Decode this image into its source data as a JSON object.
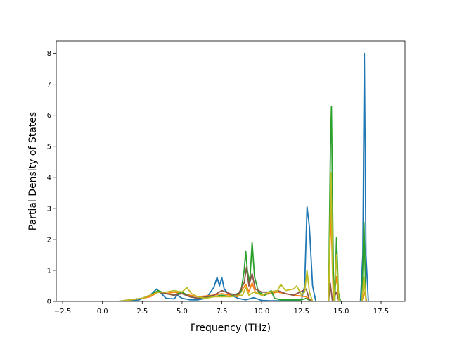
{
  "chart_data": {
    "type": "line",
    "title": "",
    "xlabel": "Frequency (THz)",
    "ylabel": "Partial Density of States",
    "xlim": [
      -2.9,
      19.0
    ],
    "ylim": [
      0,
      8.4
    ],
    "xticks": [
      -2.5,
      0.0,
      2.5,
      5.0,
      7.5,
      10.0,
      12.5,
      15.0,
      17.5
    ],
    "xtick_labels": [
      "−2.5",
      "0.0",
      "2.5",
      "5.0",
      "7.5",
      "10.0",
      "12.5",
      "15.0",
      "17.5"
    ],
    "yticks": [
      0,
      1,
      2,
      3,
      4,
      5,
      6,
      7,
      8
    ],
    "ytick_labels": [
      "0",
      "1",
      "2",
      "3",
      "4",
      "5",
      "6",
      "7",
      "8"
    ],
    "grid": false,
    "legend": false,
    "series": [
      {
        "color": "#1f77b4",
        "points": [
          [
            -1.6,
            0
          ],
          [
            1.0,
            0
          ],
          [
            2.3,
            0.05
          ],
          [
            3.0,
            0.2
          ],
          [
            3.4,
            0.4
          ],
          [
            3.7,
            0.25
          ],
          [
            4.0,
            0.1
          ],
          [
            4.5,
            0.08
          ],
          [
            4.7,
            0.2
          ],
          [
            5.0,
            0.1
          ],
          [
            5.5,
            0.05
          ],
          [
            6.0,
            0.05
          ],
          [
            6.5,
            0.1
          ],
          [
            7.0,
            0.45
          ],
          [
            7.2,
            0.78
          ],
          [
            7.35,
            0.5
          ],
          [
            7.5,
            0.77
          ],
          [
            7.65,
            0.4
          ],
          [
            7.9,
            0.25
          ],
          [
            8.5,
            0.1
          ],
          [
            9.0,
            0.05
          ],
          [
            9.5,
            0.12
          ],
          [
            10.0,
            0.03
          ],
          [
            10.5,
            0.02
          ],
          [
            11.5,
            0.02
          ],
          [
            12.5,
            0.05
          ],
          [
            12.7,
            0.5
          ],
          [
            12.85,
            3.05
          ],
          [
            13.0,
            2.4
          ],
          [
            13.2,
            0.5
          ],
          [
            13.4,
            0
          ],
          [
            16.2,
            0
          ],
          [
            16.35,
            1.5
          ],
          [
            16.45,
            8.0
          ],
          [
            16.55,
            1.5
          ],
          [
            16.7,
            0
          ],
          [
            18.0,
            0
          ]
        ]
      },
      {
        "color": "#ff7f0e",
        "points": [
          [
            -1.6,
            0
          ],
          [
            1.0,
            0
          ],
          [
            2.5,
            0.1
          ],
          [
            3.0,
            0.15
          ],
          [
            3.5,
            0.3
          ],
          [
            4.0,
            0.25
          ],
          [
            4.5,
            0.3
          ],
          [
            5.0,
            0.25
          ],
          [
            5.5,
            0.2
          ],
          [
            6.0,
            0.15
          ],
          [
            7.0,
            0.2
          ],
          [
            7.5,
            0.25
          ],
          [
            8.0,
            0.2
          ],
          [
            8.5,
            0.15
          ],
          [
            9.0,
            0.55
          ],
          [
            9.2,
            0.3
          ],
          [
            9.4,
            0.6
          ],
          [
            9.6,
            0.3
          ],
          [
            10.0,
            0.2
          ],
          [
            11.0,
            0.3
          ],
          [
            12.0,
            0.2
          ],
          [
            12.8,
            0.15
          ],
          [
            13.2,
            0
          ],
          [
            14.2,
            0
          ],
          [
            14.35,
            3.0
          ],
          [
            14.5,
            0
          ],
          [
            14.7,
            0.8
          ],
          [
            14.85,
            0
          ],
          [
            16.3,
            0
          ],
          [
            16.45,
            0.3
          ],
          [
            16.6,
            0
          ],
          [
            18.0,
            0
          ]
        ]
      },
      {
        "color": "#2ca02c",
        "points": [
          [
            -1.6,
            0
          ],
          [
            1.0,
            0
          ],
          [
            2.5,
            0.1
          ],
          [
            3.0,
            0.2
          ],
          [
            3.5,
            0.35
          ],
          [
            4.0,
            0.25
          ],
          [
            4.5,
            0.2
          ],
          [
            5.0,
            0.3
          ],
          [
            5.5,
            0.15
          ],
          [
            6.0,
            0.1
          ],
          [
            7.0,
            0.15
          ],
          [
            7.5,
            0.2
          ],
          [
            8.0,
            0.15
          ],
          [
            8.7,
            0.3
          ],
          [
            8.9,
            1.0
          ],
          [
            9.0,
            1.62
          ],
          [
            9.1,
            1.0
          ],
          [
            9.25,
            0.6
          ],
          [
            9.4,
            1.9
          ],
          [
            9.55,
            0.8
          ],
          [
            9.8,
            0.3
          ],
          [
            10.2,
            0.2
          ],
          [
            10.6,
            0.35
          ],
          [
            10.8,
            0.1
          ],
          [
            11.2,
            0.05
          ],
          [
            12.5,
            0.05
          ],
          [
            12.8,
            0.1
          ],
          [
            13.1,
            0
          ],
          [
            14.2,
            0
          ],
          [
            14.32,
            5.0
          ],
          [
            14.38,
            6.28
          ],
          [
            14.5,
            1.0
          ],
          [
            14.6,
            0
          ],
          [
            14.7,
            2.05
          ],
          [
            14.82,
            0.3
          ],
          [
            14.95,
            0
          ],
          [
            16.3,
            0
          ],
          [
            16.42,
            2.55
          ],
          [
            16.55,
            0
          ],
          [
            18.0,
            0
          ]
        ]
      },
      {
        "color": "#8c564b",
        "points": [
          [
            -1.6,
            0
          ],
          [
            1.0,
            0
          ],
          [
            2.5,
            0.1
          ],
          [
            3.0,
            0.2
          ],
          [
            3.5,
            0.3
          ],
          [
            4.0,
            0.25
          ],
          [
            4.5,
            0.2
          ],
          [
            5.0,
            0.25
          ],
          [
            5.5,
            0.15
          ],
          [
            6.0,
            0.1
          ],
          [
            7.0,
            0.2
          ],
          [
            7.5,
            0.35
          ],
          [
            8.0,
            0.25
          ],
          [
            8.5,
            0.2
          ],
          [
            8.9,
            0.6
          ],
          [
            9.05,
            1.1
          ],
          [
            9.2,
            0.5
          ],
          [
            9.4,
            0.9
          ],
          [
            9.6,
            0.4
          ],
          [
            10.0,
            0.3
          ],
          [
            10.5,
            0.3
          ],
          [
            11.0,
            0.35
          ],
          [
            11.5,
            0.25
          ],
          [
            12.0,
            0.2
          ],
          [
            12.8,
            0.4
          ],
          [
            13.0,
            0.05
          ],
          [
            13.2,
            0
          ],
          [
            14.2,
            0
          ],
          [
            14.3,
            0.6
          ],
          [
            14.45,
            0
          ],
          [
            14.7,
            0.3
          ],
          [
            14.85,
            0
          ],
          [
            18.0,
            0
          ]
        ]
      },
      {
        "color": "#bcbd22",
        "points": [
          [
            -1.6,
            0
          ],
          [
            1.0,
            0
          ],
          [
            2.5,
            0.1
          ],
          [
            3.0,
            0.2
          ],
          [
            3.5,
            0.3
          ],
          [
            4.0,
            0.3
          ],
          [
            4.5,
            0.35
          ],
          [
            5.0,
            0.3
          ],
          [
            5.3,
            0.45
          ],
          [
            5.6,
            0.25
          ],
          [
            6.0,
            0.15
          ],
          [
            6.5,
            0.1
          ],
          [
            7.0,
            0.15
          ],
          [
            8.0,
            0.15
          ],
          [
            8.8,
            0.2
          ],
          [
            9.0,
            0.45
          ],
          [
            9.2,
            0.2
          ],
          [
            9.5,
            0.3
          ],
          [
            10.0,
            0.2
          ],
          [
            10.5,
            0.3
          ],
          [
            11.0,
            0.35
          ],
          [
            11.2,
            0.55
          ],
          [
            11.5,
            0.35
          ],
          [
            12.0,
            0.4
          ],
          [
            12.2,
            0.5
          ],
          [
            12.5,
            0.2
          ],
          [
            12.7,
            0.3
          ],
          [
            12.85,
            1.0
          ],
          [
            13.0,
            0.3
          ],
          [
            13.2,
            0
          ],
          [
            14.2,
            0
          ],
          [
            14.35,
            4.15
          ],
          [
            14.45,
            1.0
          ],
          [
            14.55,
            0
          ],
          [
            14.7,
            1.5
          ],
          [
            14.85,
            0
          ],
          [
            16.3,
            0
          ],
          [
            16.42,
            0.8
          ],
          [
            16.55,
            0
          ],
          [
            18.0,
            0
          ]
        ]
      }
    ]
  }
}
